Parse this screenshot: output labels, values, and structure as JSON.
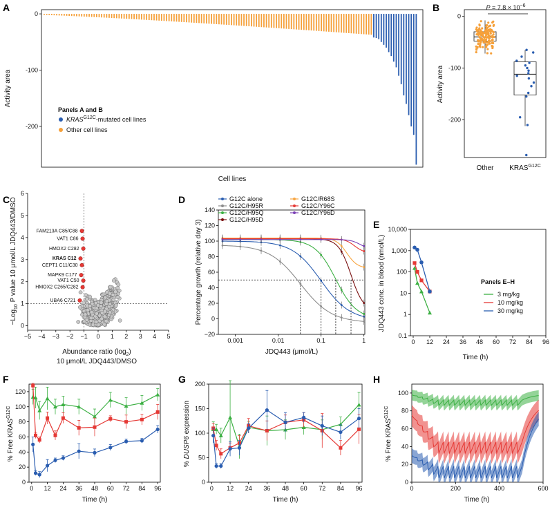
{
  "figure": {
    "panel_labels": [
      "A",
      "B",
      "C",
      "D",
      "E",
      "F",
      "G",
      "H"
    ]
  },
  "colors": {
    "orange": "#f5a03a",
    "blue": "#2a5db0",
    "red": "#e53935",
    "green": "#3cb043",
    "gray": "#8c8c8c",
    "darkred": "#7a1010",
    "lightorange": "#f7a541",
    "purple": "#7b3fb5"
  },
  "chart_data": [
    {
      "id": "A",
      "type": "bar",
      "title": "",
      "xlabel": "Cell lines",
      "ylabel": "Activity area",
      "ylim": [
        -270,
        5
      ],
      "yticks": [
        "0",
        "-100",
        "-200"
      ],
      "ytick_values": [
        0,
        -100,
        -200
      ],
      "n_bars": 150,
      "orange_range": [
        -2,
        -43
      ],
      "blue_indices_note": "KRAS G12C lines cluster at the right end",
      "blue_values": [
        -42,
        -43,
        -45,
        -50,
        -55,
        -60,
        -68,
        -75,
        -85,
        -95,
        -110,
        -125,
        -145,
        -160,
        -180,
        -200,
        -215,
        -268
      ],
      "legend_title": "Panels A and B",
      "legend": [
        {
          "label_pre": "KRAS",
          "label_sup": "G12C",
          "label_post": "-mutated cell lines",
          "color": "#2a5db0"
        },
        {
          "label_pre": "Other cell lines",
          "label_sup": "",
          "label_post": "",
          "color": "#f5a03a"
        }
      ]
    },
    {
      "id": "B",
      "type": "box",
      "ylabel": "Activity area",
      "yticks": [
        "0",
        "-100",
        "-200"
      ],
      "ytick_values": [
        0,
        -100,
        -200
      ],
      "ylim": [
        -270,
        10
      ],
      "annotation_pre": "P",
      "annotation_mid": " = 7.8 × 10",
      "annotation_sup": "−6",
      "groups": [
        {
          "name": "Other",
          "name_sup": "",
          "q1": -48,
          "median": -40,
          "q3": -30,
          "whisker_low": -72,
          "whisker_high": -8,
          "color": "#f5a03a"
        },
        {
          "name": "KRAS",
          "name_sup": "G12C",
          "q1": -152,
          "median": -112,
          "q3": -88,
          "whisker_low": -212,
          "whisker_high": -65,
          "color": "#2a5db0",
          "points": [
            -65,
            -70,
            -78,
            -86,
            -90,
            -95,
            -100,
            -105,
            -110,
            -115,
            -120,
            -128,
            -135,
            -148,
            -155,
            -195,
            -210,
            -268
          ]
        }
      ]
    },
    {
      "id": "C",
      "type": "scatter",
      "xlabel_line1": "Abundance ratio (log",
      "xlabel_sub": "2",
      "xlabel_line1_end": ")",
      "xlabel_line2": "10 μmol/L JDQ443/DMSO",
      "ylabel_pre": "−Log",
      "ylabel_sub": "10",
      "ylabel_post": " P value 10 μmol/L JDQ443/DMSO",
      "xlim": [
        -5,
        5
      ],
      "ylim": [
        -0.2,
        6
      ],
      "xticks": [
        "−5",
        "−4",
        "−3",
        "−2",
        "−1",
        "0",
        "1",
        "2",
        "3",
        "4",
        "5"
      ],
      "xtick_values": [
        -5,
        -4,
        -3,
        -2,
        -1,
        0,
        1,
        2,
        3,
        4,
        5
      ],
      "yticks": [
        "0",
        "1",
        "2",
        "3",
        "4",
        "5",
        "6"
      ],
      "ytick_values": [
        0,
        1,
        2,
        3,
        4,
        5,
        6
      ],
      "hline": 1,
      "vline": -1,
      "labeled_points": [
        {
          "label": "FAM213A C85/C88",
          "x": -1.15,
          "y": 4.3,
          "bold": false
        },
        {
          "label": "VAT1 C86",
          "x": -1.1,
          "y": 3.95,
          "bold": false
        },
        {
          "label": "HMOX2 C282",
          "x": -1.05,
          "y": 3.5,
          "bold": false
        },
        {
          "label": "KRAS C12",
          "x": -1.25,
          "y": 3.05,
          "bold": true
        },
        {
          "label": "CEPT1 C11/C30",
          "x": -1.15,
          "y": 2.75,
          "bold": false
        },
        {
          "label": "MAPK9 C177",
          "x": -1.2,
          "y": 2.3,
          "bold": false
        },
        {
          "label": "VAT1 C50",
          "x": -1.05,
          "y": 2.05,
          "bold": false
        },
        {
          "label": "HMOX2 C265/C282",
          "x": -1.1,
          "y": 1.75,
          "bold": false
        },
        {
          "label": "UBA6 C721",
          "x": -1.3,
          "y": 1.15,
          "bold": false
        }
      ]
    },
    {
      "id": "D",
      "type": "line",
      "xlabel": "JDQ443 (μmol/L)",
      "ylabel": "Percentage growth (relative day 3)",
      "xscale": "log",
      "xlim": [
        0.0004,
        1.05
      ],
      "ylim": [
        -20,
        140
      ],
      "xticks": [
        "0.001",
        "0.01",
        "0.1",
        "1"
      ],
      "xtick_values": [
        0.001,
        0.01,
        0.1,
        1
      ],
      "yticks": [
        "−20",
        "0",
        "20",
        "40",
        "60",
        "80",
        "100",
        "120",
        "140"
      ],
      "ytick_values": [
        -20,
        0,
        20,
        40,
        60,
        80,
        100,
        120,
        140
      ],
      "hline": 50,
      "ic50_lines": [
        0.033,
        0.1,
        0.22,
        0.5
      ],
      "series": [
        {
          "name": "G12C alone",
          "color": "#2a5db0",
          "top": 100,
          "bottom": -2,
          "ic50": 0.1,
          "hill": 1.3
        },
        {
          "name": "G12C/H95R",
          "color": "#8c8c8c",
          "top": 95,
          "bottom": -5,
          "ic50": 0.033,
          "hill": 1.2
        },
        {
          "name": "G12C/H95Q",
          "color": "#3cb043",
          "top": 102,
          "bottom": 0,
          "ic50": 0.22,
          "hill": 1.8
        },
        {
          "name": "G12C/H95D",
          "color": "#7a1010",
          "top": 103,
          "bottom": 10,
          "ic50": 0.5,
          "hill": 3.0
        },
        {
          "name": "G12C/R68S",
          "color": "#f7a541",
          "top": 104,
          "bottom": 65,
          "ic50": 0.4,
          "hill": 3.5
        },
        {
          "name": "G12C/Y96C",
          "color": "#e53935",
          "top": 103,
          "bottom": 85,
          "ic50": 0.6,
          "hill": 4.0
        },
        {
          "name": "G12C/Y96D",
          "color": "#7b3fb5",
          "top": 102,
          "bottom": 90,
          "ic50": 0.8,
          "hill": 4.0
        }
      ]
    },
    {
      "id": "E",
      "type": "line",
      "xlabel": "Time (h)",
      "ylabel": "JDQ443 conc. in blood (nmol/L)",
      "yscale": "log",
      "ylim": [
        0.1,
        10000
      ],
      "xlim": [
        -2,
        96
      ],
      "xticks": [
        "0",
        "12",
        "24",
        "36",
        "48",
        "60",
        "72",
        "84",
        "96"
      ],
      "xtick_values": [
        0,
        12,
        24,
        36,
        48,
        60,
        72,
        84,
        96
      ],
      "yticks": [
        "0.1",
        "1",
        "10",
        "100",
        "1,000",
        "10,000"
      ],
      "ytick_values": [
        0.1,
        1,
        10,
        100,
        1000,
        10000
      ],
      "legend_title": "Panels E–H",
      "series": [
        {
          "name": "3 mg/kg",
          "color": "#3cb043",
          "x": [
            1,
            3,
            6,
            12
          ],
          "y": [
            150,
            30,
            12,
            1.2
          ]
        },
        {
          "name": "10 mg/kg",
          "color": "#e53935",
          "x": [
            1,
            3,
            6,
            12
          ],
          "y": [
            260,
            100,
            40,
            12
          ]
        },
        {
          "name": "30 mg/kg",
          "color": "#2a5db0",
          "x": [
            1,
            3,
            6,
            12
          ],
          "y": [
            1400,
            1100,
            280,
            12
          ]
        }
      ]
    },
    {
      "id": "F",
      "type": "line",
      "xlabel": "Time (h)",
      "ylabel_pre": "% Free KRAS",
      "ylabel_sup": "G12C",
      "xlim": [
        -2,
        98
      ],
      "ylim": [
        0,
        130
      ],
      "xticks": [
        "0",
        "12",
        "24",
        "36",
        "48",
        "60",
        "72",
        "84",
        "96"
      ],
      "xtick_values": [
        0,
        12,
        24,
        36,
        48,
        60,
        72,
        84,
        96
      ],
      "yticks": [
        "0",
        "20",
        "40",
        "60",
        "80",
        "100",
        "120"
      ],
      "ytick_values": [
        0,
        20,
        40,
        60,
        80,
        100,
        120
      ],
      "series": [
        {
          "name": "3 mg/kg",
          "color": "#3cb043",
          "marker": "triangle",
          "x": [
            1,
            3,
            6,
            12,
            18,
            24,
            36,
            48,
            60,
            72,
            84,
            96
          ],
          "y": [
            113,
            112,
            95,
            111,
            100,
            103,
            100,
            87,
            109,
            101,
            105,
            116
          ],
          "err": [
            10,
            14,
            12,
            15,
            10,
            11,
            10,
            10,
            10,
            11,
            10,
            8
          ]
        },
        {
          "name": "10 mg/kg",
          "color": "#e53935",
          "marker": "square",
          "x": [
            1,
            3,
            6,
            12,
            18,
            24,
            36,
            48,
            60,
            72,
            84,
            96
          ],
          "y": [
            128,
            62,
            56,
            85,
            62,
            85,
            72,
            73,
            84,
            80,
            83,
            93
          ],
          "err": [
            3,
            4,
            4,
            8,
            6,
            7,
            10,
            12,
            4,
            9,
            7,
            10
          ]
        },
        {
          "name": "30 mg/kg",
          "color": "#2a5db0",
          "marker": "circle",
          "x": [
            1,
            3,
            6,
            12,
            18,
            24,
            36,
            48,
            60,
            72,
            84,
            96
          ],
          "y": [
            50,
            12,
            10,
            22,
            29,
            32,
            41,
            39,
            46,
            54,
            55,
            70
          ],
          "err": [
            10,
            3,
            4,
            8,
            3,
            3,
            10,
            5,
            4,
            3,
            3,
            5
          ]
        }
      ]
    },
    {
      "id": "G",
      "type": "line",
      "xlabel": "Time (h)",
      "ylabel_pre": "% ",
      "ylabel_italic": "DUSP6",
      "ylabel_post": " expression",
      "xlim": [
        -2,
        98
      ],
      "ylim": [
        0,
        200
      ],
      "xticks": [
        "0",
        "12",
        "24",
        "36",
        "48",
        "60",
        "72",
        "84",
        "96"
      ],
      "xtick_values": [
        0,
        12,
        24,
        36,
        48,
        60,
        72,
        84,
        96
      ],
      "yticks": [
        "0",
        "50",
        "100",
        "150",
        "200"
      ],
      "ytick_values": [
        0,
        50,
        100,
        150,
        200
      ],
      "series": [
        {
          "name": "3 mg/kg",
          "color": "#3cb043",
          "x": [
            1,
            3,
            6,
            12,
            18,
            24,
            36,
            48,
            60,
            72,
            84,
            96
          ],
          "y": [
            108,
            108,
            95,
            132,
            73,
            112,
            105,
            107,
            112,
            107,
            118,
            158
          ],
          "err": [
            15,
            10,
            15,
            75,
            25,
            12,
            30,
            20,
            15,
            20,
            15,
            25
          ]
        },
        {
          "name": "10 mg/kg",
          "color": "#e53935",
          "x": [
            1,
            3,
            6,
            12,
            18,
            24,
            36,
            48,
            60,
            72,
            84,
            96
          ],
          "y": [
            110,
            75,
            58,
            70,
            80,
            115,
            105,
            122,
            127,
            105,
            70,
            108
          ],
          "err": [
            10,
            10,
            10,
            10,
            15,
            15,
            20,
            15,
            15,
            35,
            15,
            30
          ]
        },
        {
          "name": "30 mg/kg",
          "color": "#2a5db0",
          "x": [
            1,
            3,
            6,
            12,
            18,
            24,
            36,
            48,
            60,
            72,
            84,
            96
          ],
          "y": [
            95,
            33,
            33,
            68,
            70,
            110,
            147,
            122,
            132,
            115,
            102,
            130
          ],
          "err": [
            15,
            5,
            5,
            15,
            15,
            10,
            40,
            20,
            10,
            20,
            15,
            20
          ]
        }
      ]
    },
    {
      "id": "H",
      "type": "area",
      "xlabel": "Time (h)",
      "ylabel_pre": "% Free KRAS",
      "ylabel_sup": "G12C",
      "xlim": [
        0,
        600
      ],
      "ylim": [
        0,
        110
      ],
      "xticks": [
        "0",
        "200",
        "400",
        "600"
      ],
      "xtick_values": [
        0,
        200,
        400,
        600
      ],
      "yticks": [
        "0",
        "20",
        "40",
        "60",
        "80",
        "100"
      ],
      "ytick_values": [
        0,
        20,
        40,
        60,
        80,
        100
      ],
      "dosing_interval_h": 24,
      "dosing_end_h": 504,
      "series": [
        {
          "name": "3 mg/kg",
          "color": "#3cb043",
          "trough": 86,
          "peak": 92,
          "start": 98,
          "band": 6
        },
        {
          "name": "10 mg/kg",
          "color": "#e53935",
          "trough": 32,
          "peak": 45,
          "start": 75,
          "band": 12
        },
        {
          "name": "30 mg/kg",
          "color": "#2a5db0",
          "trough": 4,
          "peak": 18,
          "start": 30,
          "band": 8
        }
      ]
    }
  ]
}
